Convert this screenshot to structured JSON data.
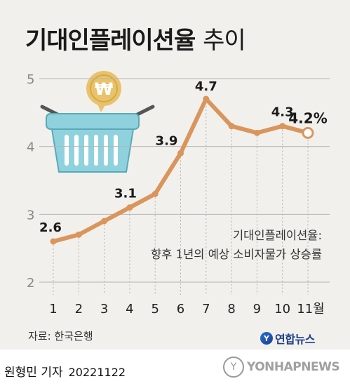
{
  "header": {
    "title_bold": "기대인플레이션율",
    "title_normal": "추이"
  },
  "note": {
    "line1": "기대인플레이션율:",
    "line2": "향후 1년의 예상 소비자물가 상승률"
  },
  "source": "자료: 한국은행",
  "agency_logo": "연합뉴스",
  "byline": {
    "author": "원형민 기자",
    "date": "20221122"
  },
  "watermark": "YONHAPNEWS",
  "colors": {
    "line": "#d9955c",
    "background": "#f2f0ec",
    "basket": "#8fd2de",
    "coin": "#e9c36b"
  },
  "icons": [
    "shopping-basket-icon",
    "won-coin-icon"
  ],
  "chart_data": {
    "type": "line",
    "categories": [
      "1",
      "2",
      "3",
      "4",
      "5",
      "6",
      "7",
      "8",
      "9",
      "10",
      "11월"
    ],
    "values": [
      2.6,
      2.7,
      2.9,
      3.1,
      3.3,
      3.9,
      4.7,
      4.3,
      4.2,
      4.3,
      4.2
    ],
    "data_labels": [
      {
        "index": 0,
        "text": "2.6"
      },
      {
        "index": 3,
        "text": "3.1"
      },
      {
        "index": 5,
        "text": "3.9"
      },
      {
        "index": 6,
        "text": "4.7"
      },
      {
        "index": 9,
        "text": "4.3"
      },
      {
        "index": 10,
        "text": "4.2%"
      }
    ],
    "yticks": [
      "2",
      "3",
      "4",
      "5"
    ],
    "ylim": [
      2,
      5
    ],
    "grid": true,
    "highlight_last": true
  }
}
